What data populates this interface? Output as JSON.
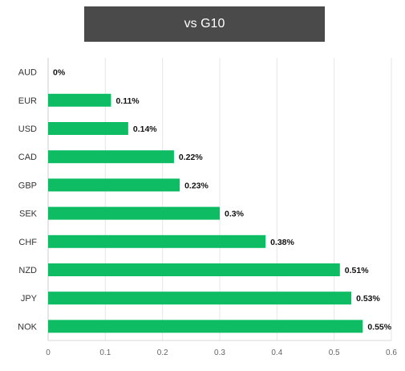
{
  "chart_data": {
    "type": "bar",
    "orientation": "horizontal",
    "title": "vs G10",
    "xlabel": "",
    "ylabel": "",
    "categories": [
      "AUD",
      "EUR",
      "USD",
      "CAD",
      "GBP",
      "SEK",
      "CHF",
      "NZD",
      "JPY",
      "NOK"
    ],
    "values": [
      0,
      0.11,
      0.14,
      0.22,
      0.23,
      0.3,
      0.38,
      0.51,
      0.53,
      0.55
    ],
    "data_labels": [
      "0%",
      "0.11%",
      "0.14%",
      "0.22%",
      "0.23%",
      "0.3%",
      "0.38%",
      "0.51%",
      "0.53%",
      "0.55%"
    ],
    "xlim": [
      0,
      0.6
    ],
    "xticks": [
      "0",
      "0.1",
      "0.2",
      "0.3",
      "0.4",
      "0.5",
      "0.6"
    ],
    "grid": true,
    "legend": "none",
    "bar_color": "#0ebd63"
  }
}
